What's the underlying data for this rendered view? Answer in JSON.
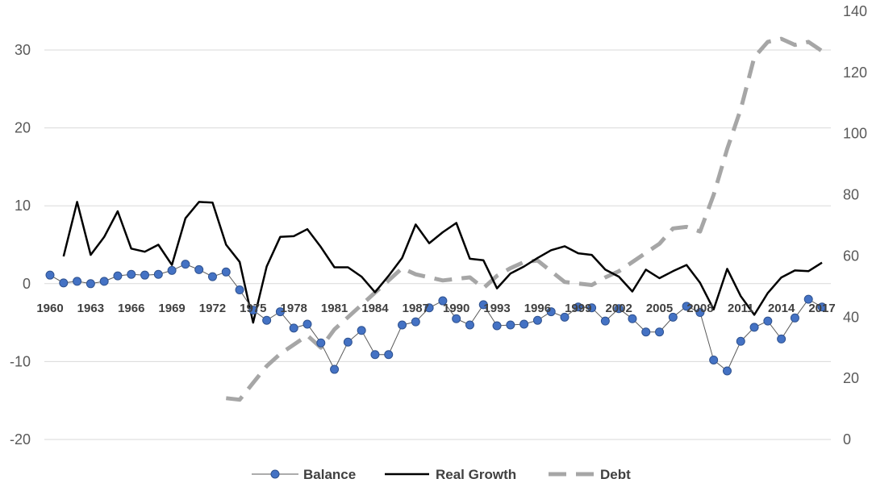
{
  "chart_data": {
    "type": "line",
    "x": [
      1960,
      1961,
      1962,
      1963,
      1964,
      1965,
      1966,
      1967,
      1968,
      1969,
      1970,
      1971,
      1972,
      1973,
      1974,
      1975,
      1976,
      1977,
      1978,
      1979,
      1980,
      1981,
      1982,
      1983,
      1984,
      1985,
      1986,
      1987,
      1988,
      1989,
      1990,
      1991,
      1992,
      1993,
      1994,
      1995,
      1996,
      1997,
      1998,
      1999,
      2000,
      2001,
      2002,
      2003,
      2004,
      2005,
      2006,
      2007,
      2008,
      2009,
      2010,
      2011,
      2012,
      2013,
      2014,
      2015,
      2016,
      2017
    ],
    "x_tick_labels": [
      "1960",
      "1963",
      "1966",
      "1969",
      "1972",
      "1975",
      "1978",
      "1981",
      "1984",
      "1987",
      "1990",
      "1993",
      "1996",
      "1999",
      "2002",
      "2005",
      "2008",
      "2011",
      "2014",
      "2017"
    ],
    "y_left_range": [
      -20,
      30
    ],
    "y_left_ticks": [
      "-20",
      "-10",
      "0",
      "10",
      "20",
      "30"
    ],
    "y_right_range": [
      0,
      140
    ],
    "y_right_ticks": [
      "0",
      "20",
      "40",
      "60",
      "80",
      "100",
      "120",
      "140"
    ],
    "grid": "horizontal",
    "legend_position": "bottom",
    "series": [
      {
        "name": "Balance",
        "axis": "left",
        "style": "line-with-markers",
        "color": "#4472C4",
        "values": [
          1.1,
          0.1,
          0.3,
          0.0,
          0.3,
          1.0,
          1.2,
          1.1,
          1.2,
          1.7,
          2.5,
          1.8,
          0.9,
          1.5,
          -0.8,
          -3.4,
          -4.7,
          -3.6,
          -5.7,
          -5.2,
          -7.6,
          -11.0,
          -7.5,
          -6.0,
          -9.1,
          -9.1,
          -5.3,
          -4.9,
          -3.1,
          -2.2,
          -4.5,
          -5.3,
          -2.7,
          -5.4,
          -5.3,
          -5.2,
          -4.7,
          -3.6,
          -4.3,
          -3.0,
          -3.1,
          -4.8,
          -3.2,
          -4.5,
          -6.2,
          -6.2,
          -4.3,
          -2.9,
          -3.7,
          -9.8,
          -11.2,
          -7.4,
          -5.6,
          -4.8,
          -7.1,
          -4.4,
          -2.0,
          -3.0
        ]
      },
      {
        "name": "Real Growth",
        "axis": "left",
        "style": "solid",
        "color": "#000000",
        "values": [
          null,
          3.5,
          10.5,
          3.7,
          6.0,
          9.3,
          4.5,
          4.1,
          5.0,
          2.4,
          8.4,
          10.5,
          10.4,
          5.0,
          2.8,
          -5.0,
          2.2,
          6.0,
          6.1,
          7.0,
          4.7,
          2.1,
          2.1,
          0.9,
          -1.1,
          1.0,
          3.3,
          7.6,
          5.2,
          6.6,
          7.8,
          3.2,
          3.0,
          -0.6,
          1.3,
          2.2,
          3.3,
          4.3,
          4.8,
          3.9,
          3.7,
          1.8,
          0.9,
          -1.0,
          1.8,
          0.7,
          1.6,
          2.4,
          0.1,
          -3.3,
          1.9,
          -1.6,
          -4.0,
          -1.2,
          0.8,
          1.7,
          1.6,
          2.7
        ]
      },
      {
        "name": "Debt",
        "axis": "right",
        "style": "dashed",
        "color": "#A6A6A6",
        "values": [
          null,
          null,
          null,
          null,
          null,
          null,
          null,
          null,
          null,
          null,
          null,
          null,
          null,
          13.5,
          13.0,
          18.5,
          24.0,
          28.0,
          31.0,
          34.0,
          30.0,
          36.0,
          40.0,
          44.0,
          48.0,
          52.0,
          56.0,
          54.0,
          53.0,
          52.0,
          52.5,
          53.0,
          49.5,
          53.5,
          56.0,
          58.0,
          58.5,
          55.0,
          51.5,
          51.0,
          50.5,
          53.0,
          55.0,
          58.0,
          61.0,
          64.0,
          69.0,
          69.5,
          68.0,
          80.0,
          95.0,
          108.0,
          125.0,
          130.0,
          131.0,
          129.0,
          130.0,
          127.0
        ]
      }
    ]
  }
}
